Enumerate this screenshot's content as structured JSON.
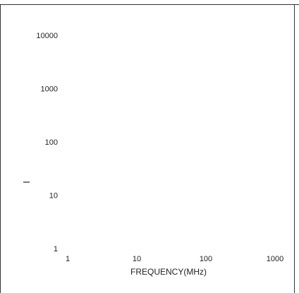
{
  "chart_data": {
    "type": "line",
    "title": "",
    "xlabel": "FREQUENCY(MHz)",
    "ylabel": "",
    "x_scale": "log",
    "y_scale": "log",
    "xlim": [
      1,
      1000
    ],
    "ylim": [
      1,
      10000
    ],
    "x_ticks": [
      {
        "value": 1,
        "label": "1"
      },
      {
        "value": 10,
        "label": "10"
      },
      {
        "value": 100,
        "label": "100"
      },
      {
        "value": 1000,
        "label": "1000"
      }
    ],
    "y_ticks": [
      {
        "value": 1,
        "label": "1"
      },
      {
        "value": 10,
        "label": "10"
      },
      {
        "value": 100,
        "label": "100"
      },
      {
        "value": 1000,
        "label": "1000"
      },
      {
        "value": 10000,
        "label": "10000"
      }
    ],
    "series": [],
    "grid": false,
    "legend": "none",
    "colors": {
      "frame": "#333333",
      "text": "#222222",
      "background": "#ffffff"
    }
  }
}
